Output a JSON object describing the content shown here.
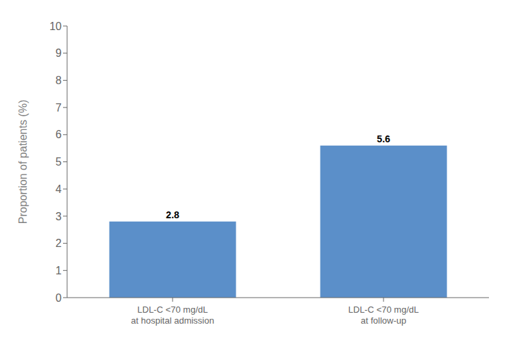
{
  "chart_data": {
    "type": "bar",
    "categories": [
      "LDL-C <70 mg/dL\nat hospital admission",
      "LDL-C <70 mg/dL\nat follow-up"
    ],
    "values": [
      2.8,
      5.6
    ],
    "color": "#5B8FC9",
    "ylabel": "Proportion of patients (%)",
    "ylim": [
      0,
      10
    ],
    "yticks": [
      0,
      1,
      2,
      3,
      4,
      5,
      6,
      7,
      8,
      9,
      10
    ],
    "grid": false,
    "data_labels": true
  }
}
